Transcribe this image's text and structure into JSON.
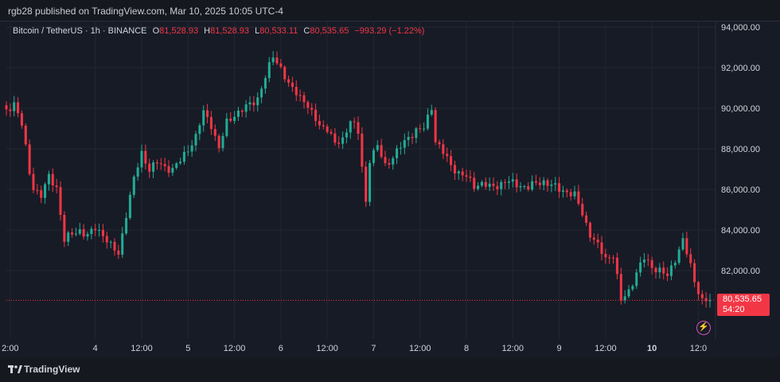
{
  "header": {
    "published_text": "rgb28 published on TradingView.com, Mar 10, 2025 10:05 UTC-4"
  },
  "legend": {
    "symbol": "Bitcoin / TetherUS · 1h · BINANCE",
    "o_label": "O",
    "o_value": "81,528.93",
    "h_label": "H",
    "h_value": "81,528.93",
    "l_label": "L",
    "l_value": "80,533.11",
    "c_label": "C",
    "c_value": "80,535.65",
    "change": "−993.29 (−1.22%)"
  },
  "price_tag": {
    "price": "80,535.65",
    "countdown": "54:20"
  },
  "footer": {
    "brand": "TradingView"
  },
  "colors": {
    "up": "#22ab94",
    "down": "#f23645",
    "background": "#171b26",
    "grid": "#232733",
    "alert": "#d64fbf"
  },
  "icons": [
    "tradingview-logo-icon",
    "lightning-alert-icon"
  ],
  "chart_data": {
    "type": "candlestick",
    "y_axis_labels": [
      "94,000.00",
      "92,000.00",
      "90,000.00",
      "88,000.00",
      "86,000.00",
      "84,000.00",
      "82,000.00"
    ],
    "y_ticks": [
      94000,
      92000,
      90000,
      88000,
      86000,
      84000,
      82000
    ],
    "ylim": [
      79000,
      94500
    ],
    "x_axis_labels": [
      {
        "text": "2:00",
        "bold": false
      },
      {
        "text": "4",
        "bold": false
      },
      {
        "text": "12:00",
        "bold": false
      },
      {
        "text": "5",
        "bold": false
      },
      {
        "text": "12:00",
        "bold": false
      },
      {
        "text": "6",
        "bold": false
      },
      {
        "text": "12:00",
        "bold": false
      },
      {
        "text": "7",
        "bold": false
      },
      {
        "text": "12:00",
        "bold": false
      },
      {
        "text": "8",
        "bold": false
      },
      {
        "text": "12:00",
        "bold": false
      },
      {
        "text": "9",
        "bold": false
      },
      {
        "text": "12:00",
        "bold": false
      },
      {
        "text": "10",
        "bold": true
      },
      {
        "text": "12:0",
        "bold": false
      }
    ],
    "x_label_hours": [
      2,
      24,
      36,
      48,
      60,
      72,
      84,
      96,
      108,
      120,
      132,
      144,
      156,
      168,
      180
    ],
    "x_range_hours": [
      1,
      183
    ],
    "last_price": 80535.65,
    "close_path": [
      [
        1,
        89800
      ],
      [
        3,
        90300
      ],
      [
        5,
        89200
      ],
      [
        7,
        86800
      ],
      [
        8,
        86100
      ],
      [
        10,
        85700
      ],
      [
        12,
        86600
      ],
      [
        14,
        86100
      ],
      [
        16,
        83500
      ],
      [
        18,
        83800
      ],
      [
        20,
        84000
      ],
      [
        22,
        83700
      ],
      [
        24,
        84100
      ],
      [
        26,
        83800
      ],
      [
        28,
        83200
      ],
      [
        30,
        82800
      ],
      [
        32,
        84800
      ],
      [
        34,
        86500
      ],
      [
        36,
        87800
      ],
      [
        38,
        87000
      ],
      [
        40,
        87300
      ],
      [
        42,
        87100
      ],
      [
        44,
        87000
      ],
      [
        46,
        87400
      ],
      [
        48,
        88000
      ],
      [
        50,
        88600
      ],
      [
        52,
        89800
      ],
      [
        54,
        89200
      ],
      [
        56,
        88000
      ],
      [
        58,
        89300
      ],
      [
        60,
        89700
      ],
      [
        62,
        89900
      ],
      [
        64,
        90200
      ],
      [
        66,
        90500
      ],
      [
        68,
        91500
      ],
      [
        70,
        92600
      ],
      [
        72,
        92000
      ],
      [
        74,
        91100
      ],
      [
        76,
        90800
      ],
      [
        78,
        90400
      ],
      [
        80,
        89700
      ],
      [
        82,
        89200
      ],
      [
        84,
        89000
      ],
      [
        86,
        88200
      ],
      [
        88,
        88500
      ],
      [
        90,
        89400
      ],
      [
        92,
        88800
      ],
      [
        94,
        85400
      ],
      [
        95,
        87500
      ],
      [
        97,
        88100
      ],
      [
        99,
        87200
      ],
      [
        101,
        87600
      ],
      [
        103,
        88100
      ],
      [
        105,
        88600
      ],
      [
        107,
        88900
      ],
      [
        109,
        89000
      ],
      [
        111,
        90100
      ],
      [
        112,
        88400
      ],
      [
        114,
        87800
      ],
      [
        116,
        87200
      ],
      [
        118,
        86800
      ],
      [
        120,
        86600
      ],
      [
        122,
        86200
      ],
      [
        124,
        86300
      ],
      [
        126,
        86100
      ],
      [
        128,
        86200
      ],
      [
        130,
        86400
      ],
      [
        132,
        86300
      ],
      [
        134,
        86200
      ],
      [
        136,
        86100
      ],
      [
        138,
        86300
      ],
      [
        140,
        86400
      ],
      [
        142,
        86200
      ],
      [
        144,
        86000
      ],
      [
        146,
        85900
      ],
      [
        148,
        85700
      ],
      [
        150,
        84800
      ],
      [
        152,
        83800
      ],
      [
        154,
        83200
      ],
      [
        156,
        82600
      ],
      [
        158,
        82800
      ],
      [
        160,
        80500
      ],
      [
        162,
        81000
      ],
      [
        164,
        81900
      ],
      [
        166,
        82600
      ],
      [
        168,
        82200
      ],
      [
        170,
        82000
      ],
      [
        172,
        81700
      ],
      [
        174,
        82600
      ],
      [
        176,
        83500
      ],
      [
        178,
        82200
      ],
      [
        179,
        81500
      ],
      [
        181,
        80535
      ]
    ]
  }
}
